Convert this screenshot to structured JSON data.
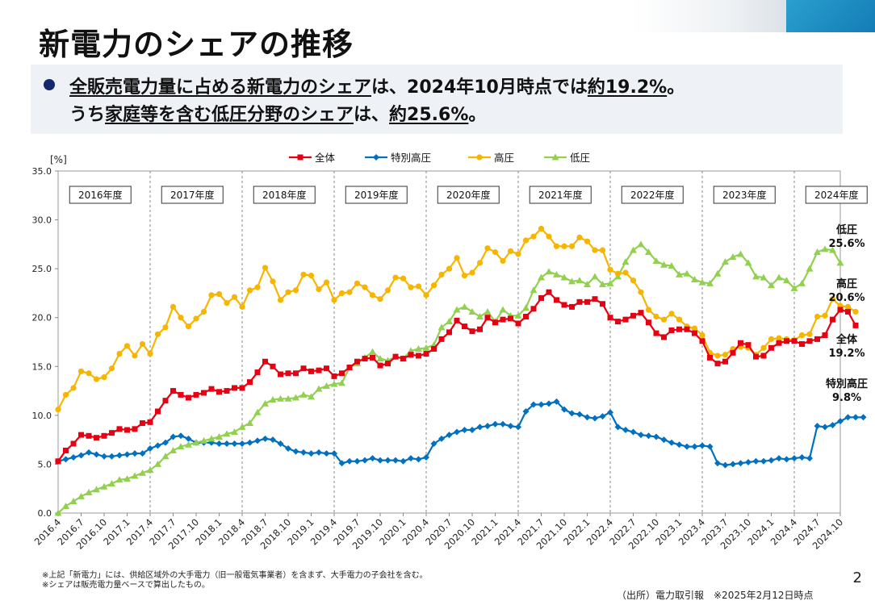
{
  "page": {
    "title": "新電力のシェアの推移",
    "summary": {
      "line1": [
        {
          "t": "全販売電力量に占める新電力のシェア",
          "u": true
        },
        {
          "t": "は、2024年10月時点では",
          "u": false
        },
        {
          "t": "約19.2%",
          "u": true
        },
        {
          "t": "。",
          "u": false
        }
      ],
      "line2": [
        {
          "t": "うち",
          "u": false
        },
        {
          "t": "家庭等を含む低圧分野のシェア",
          "u": true
        },
        {
          "t": "は、",
          "u": false
        },
        {
          "t": "約25.6%",
          "u": true
        },
        {
          "t": "。",
          "u": false
        }
      ]
    },
    "footnotes": [
      "※上記「新電力」には、供給区域外の大手電力（旧一般電気事業者）を含まず、大手電力の子会社を含む。",
      "※シェアは販売電力量ベースで算出したもの。"
    ],
    "source": "（出所）電力取引報　※2025年2月12日時点",
    "page_number": "2",
    "colors": {
      "bullet": "#13296b",
      "box_bg": "#eef1f5"
    }
  },
  "chart_data": {
    "type": "line",
    "ylabel": "[%]",
    "ylim": [
      0,
      35
    ],
    "yticks": [
      "0.0",
      "5.0",
      "10.0",
      "15.0",
      "20.0",
      "25.0",
      "30.0",
      "35.0"
    ],
    "grid": false,
    "legend_position": "top",
    "x_start": "2016.4",
    "x_count": 103,
    "x_tick_labels": [
      "2016.4",
      "2016.7",
      "2016.10",
      "2017.1",
      "2017.4",
      "2017.7",
      "2017.10",
      "2018.1",
      "2018.4",
      "2018.7",
      "2018.10",
      "2019.1",
      "2019.4",
      "2019.7",
      "2019.10",
      "2020.1",
      "2020.4",
      "2020.7",
      "2020.10",
      "2021.1",
      "2021.4",
      "2021.7",
      "2021.10",
      "2022.1",
      "2022.4",
      "2022.7",
      "2022.10",
      "2023.1",
      "2023.4",
      "2023.7",
      "2023.10",
      "2024.1",
      "2024.4",
      "2024.7",
      "2024.10"
    ],
    "fiscal_years": [
      "2016年度",
      "2017年度",
      "2018年度",
      "2019年度",
      "2020年度",
      "2021年度",
      "2022年度",
      "2023年度",
      "2024年度"
    ],
    "series": [
      {
        "name": "全体",
        "color": "#e60012",
        "marker": "square",
        "values": [
          5.3,
          6.4,
          7.1,
          8.0,
          7.9,
          7.7,
          7.9,
          8.2,
          8.6,
          8.5,
          8.6,
          9.2,
          9.3,
          10.4,
          11.5,
          12.5,
          12.1,
          11.8,
          12.1,
          12.3,
          12.7,
          12.4,
          12.5,
          12.8,
          12.8,
          13.4,
          14.4,
          15.5,
          15.0,
          14.2,
          14.3,
          14.3,
          14.8,
          14.5,
          14.6,
          14.8,
          14.0,
          14.3,
          14.9,
          15.5,
          15.8,
          15.9,
          15.1,
          15.3,
          16.0,
          15.8,
          16.2,
          16.1,
          16.3,
          16.8,
          17.8,
          18.5,
          19.7,
          19.1,
          18.6,
          18.8,
          20.0,
          19.5,
          19.8,
          19.9,
          19.4,
          20.1,
          20.9,
          22.0,
          22.6,
          21.8,
          21.3,
          21.1,
          21.6,
          21.6,
          21.9,
          21.4,
          20.0,
          19.6,
          19.8,
          20.2,
          20.5,
          19.5,
          18.4,
          18.0,
          18.7,
          18.8,
          18.8,
          18.4,
          17.6,
          15.9,
          15.3,
          15.5,
          16.4,
          17.4,
          17.2,
          16.0,
          16.1,
          16.9,
          17.4,
          17.6,
          17.6,
          17.3,
          17.6,
          17.8,
          18.2,
          19.8,
          20.8,
          20.6,
          19.2
        ]
      },
      {
        "name": "特別高圧",
        "color": "#0070c0",
        "marker": "diamond",
        "values": [
          5.3,
          5.5,
          5.7,
          5.9,
          6.2,
          6.0,
          5.8,
          5.8,
          5.9,
          6.0,
          6.1,
          6.1,
          6.6,
          6.9,
          7.2,
          7.8,
          7.9,
          7.6,
          7.2,
          7.2,
          7.2,
          7.1,
          7.1,
          7.1,
          7.1,
          7.2,
          7.4,
          7.6,
          7.5,
          7.1,
          6.6,
          6.3,
          6.2,
          6.1,
          6.2,
          6.1,
          6.1,
          5.1,
          5.3,
          5.3,
          5.4,
          5.6,
          5.4,
          5.4,
          5.4,
          5.3,
          5.6,
          5.5,
          5.7,
          7.1,
          7.6,
          8.0,
          8.3,
          8.5,
          8.5,
          8.8,
          8.9,
          9.1,
          9.1,
          8.9,
          8.8,
          10.4,
          11.1,
          11.1,
          11.2,
          11.4,
          10.6,
          10.2,
          10.1,
          9.8,
          9.7,
          9.9,
          10.3,
          8.8,
          8.5,
          8.3,
          8.0,
          7.9,
          7.8,
          7.5,
          7.2,
          7.0,
          6.8,
          6.8,
          6.9,
          6.8,
          5.1,
          4.9,
          5.0,
          5.1,
          5.2,
          5.3,
          5.3,
          5.4,
          5.6,
          5.5,
          5.6,
          5.7,
          5.6,
          8.9,
          8.8,
          9.0,
          9.4,
          9.8,
          9.8,
          9.8
        ]
      },
      {
        "name": "高圧",
        "color": "#f7b500",
        "marker": "circle",
        "values": [
          10.6,
          12.1,
          12.8,
          14.5,
          14.3,
          13.7,
          13.9,
          14.8,
          16.3,
          17.1,
          16.1,
          17.3,
          16.3,
          18.3,
          19.0,
          21.1,
          20.0,
          19.1,
          19.9,
          20.6,
          22.3,
          22.4,
          21.5,
          22.1,
          21.1,
          22.8,
          23.1,
          25.1,
          23.7,
          21.8,
          22.6,
          22.8,
          24.4,
          24.3,
          22.9,
          23.6,
          21.8,
          22.5,
          22.6,
          23.5,
          23.1,
          22.3,
          21.9,
          22.8,
          24.1,
          24.0,
          23.1,
          23.2,
          22.3,
          23.3,
          24.4,
          25.0,
          26.1,
          24.3,
          24.6,
          25.6,
          27.1,
          26.7,
          25.8,
          26.8,
          26.5,
          27.9,
          28.3,
          29.1,
          28.3,
          27.3,
          27.3,
          27.3,
          28.2,
          27.8,
          26.9,
          26.9,
          24.9,
          24.5,
          24.6,
          23.8,
          22.6,
          20.8,
          20.1,
          19.8,
          20.4,
          19.8,
          19.1,
          18.9,
          18.2,
          16.4,
          16.1,
          16.2,
          16.8,
          17.0,
          16.9,
          16.2,
          16.9,
          17.8,
          17.9,
          17.8,
          17.7,
          18.2,
          18.3,
          20.1,
          20.2,
          21.9,
          21.2,
          21.1,
          20.6
        ]
      },
      {
        "name": "低圧",
        "color": "#92d050",
        "marker": "triangle",
        "values": [
          0.0,
          0.7,
          1.2,
          1.7,
          2.1,
          2.4,
          2.7,
          3.0,
          3.4,
          3.5,
          3.8,
          4.1,
          4.4,
          5.0,
          5.8,
          6.4,
          6.8,
          7.0,
          7.2,
          7.4,
          7.6,
          7.8,
          8.1,
          8.3,
          8.8,
          9.2,
          10.3,
          11.2,
          11.6,
          11.7,
          11.7,
          11.8,
          12.1,
          11.9,
          12.7,
          13.0,
          13.2,
          13.3,
          14.9,
          15.3,
          15.9,
          16.5,
          15.8,
          15.6,
          16.0,
          15.8,
          16.6,
          16.8,
          16.9,
          17.2,
          19.0,
          19.6,
          20.8,
          21.1,
          20.6,
          20.1,
          20.6,
          19.6,
          20.8,
          20.2,
          20.2,
          21.0,
          22.8,
          24.1,
          24.7,
          24.4,
          24.1,
          23.7,
          23.8,
          23.4,
          24.2,
          23.4,
          23.5,
          24.2,
          25.7,
          26.9,
          27.5,
          26.7,
          25.8,
          25.4,
          25.3,
          24.4,
          24.5,
          23.9,
          23.6,
          23.5,
          24.5,
          25.7,
          26.2,
          26.5,
          25.6,
          24.2,
          24.1,
          23.3,
          24.1,
          23.8,
          23.0,
          23.5,
          25.0,
          26.7,
          27.0,
          26.9,
          25.6
        ]
      }
    ],
    "end_labels": [
      {
        "series": "低圧",
        "name": "低圧",
        "value": "25.6%"
      },
      {
        "series": "高圧",
        "name": "高圧",
        "value": "20.6%"
      },
      {
        "series": "全体",
        "name": "全体",
        "value": "19.2%"
      },
      {
        "series": "特別高圧",
        "name": "特別高圧",
        "value": "9.8%"
      }
    ]
  }
}
